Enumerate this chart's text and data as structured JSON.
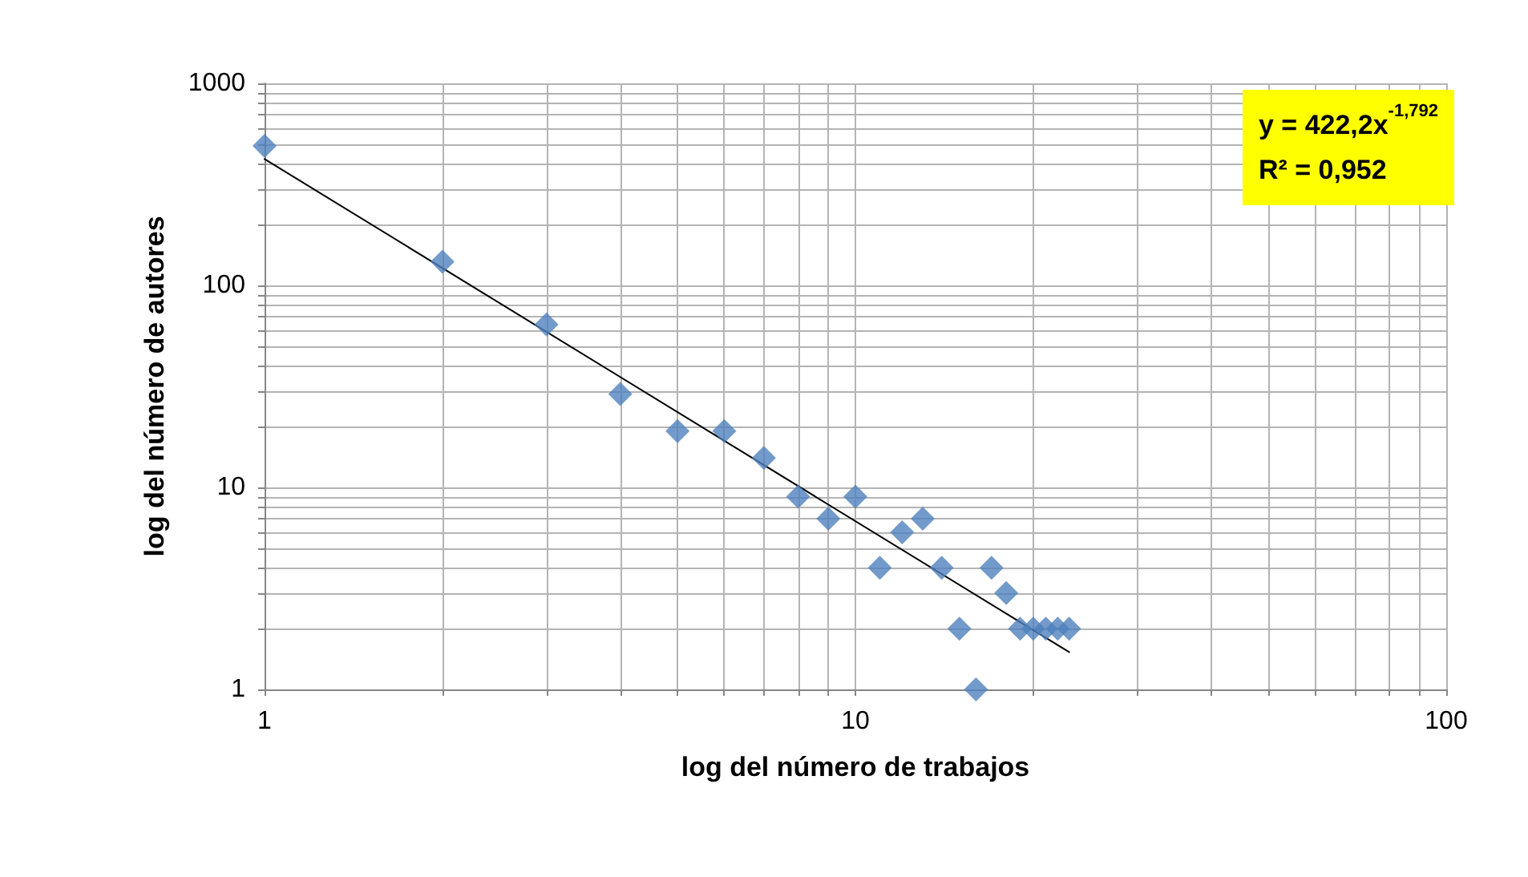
{
  "chart_data": {
    "type": "scatter",
    "xlabel": "log del número de trabajos",
    "ylabel": "log del número de autores",
    "log": "xy",
    "grid": true,
    "marker": "diamond",
    "xlim": [
      1,
      100
    ],
    "xticks": [
      1,
      {
        "value": 2,
        "label": null
      },
      {
        "value": 3,
        "label": null
      },
      {
        "value": 4,
        "label": null
      },
      {
        "value": 5,
        "label": null
      },
      {
        "value": 6,
        "label": null
      },
      {
        "value": 7,
        "label": null
      },
      {
        "value": 8,
        "label": null
      },
      {
        "value": 9,
        "label": null
      },
      10,
      {
        "value": 20,
        "label": null
      },
      {
        "value": 30,
        "label": null
      },
      {
        "value": 40,
        "label": null
      },
      {
        "value": 50,
        "label": null
      },
      {
        "value": 60,
        "label": null
      },
      {
        "value": 70,
        "label": null
      },
      {
        "value": 80,
        "label": null
      },
      {
        "value": 90,
        "label": null
      },
      100
    ],
    "ylim": [
      1,
      1000
    ],
    "yticks": [
      1,
      {
        "value": 2,
        "label": null
      },
      {
        "value": 3,
        "label": null
      },
      {
        "value": 4,
        "label": null
      },
      {
        "value": 5,
        "label": null
      },
      {
        "value": 6,
        "label": null
      },
      {
        "value": 7,
        "label": null
      },
      {
        "value": 8,
        "label": null
      },
      {
        "value": 9,
        "label": null
      },
      10,
      {
        "value": 20,
        "label": null
      },
      {
        "value": 30,
        "label": null
      },
      {
        "value": 40,
        "label": null
      },
      {
        "value": 50,
        "label": null
      },
      {
        "value": 60,
        "label": null
      },
      {
        "value": 70,
        "label": null
      },
      {
        "value": 80,
        "label": null
      },
      {
        "value": 90,
        "label": null
      },
      100,
      {
        "value": 200,
        "label": null
      },
      {
        "value": 300,
        "label": null
      },
      {
        "value": 400,
        "label": null
      },
      {
        "value": 500,
        "label": null
      },
      {
        "value": 600,
        "label": null
      },
      {
        "value": 700,
        "label": null
      },
      {
        "value": 800,
        "label": null
      },
      {
        "value": 900,
        "label": null
      },
      1000
    ],
    "series": [
      {
        "color": "#4f81bd",
        "x": [
          1,
          2,
          3,
          4,
          5,
          6,
          7,
          8,
          9,
          10,
          11,
          12,
          13,
          14,
          15,
          16,
          17,
          18,
          19,
          20,
          21,
          22,
          23
        ],
        "values": [
          490,
          131,
          64,
          29,
          19,
          19,
          14,
          9,
          7,
          9,
          4,
          6,
          7,
          4,
          2,
          1,
          4,
          3,
          2,
          2,
          2,
          2,
          2
        ]
      },
      {
        "type": "line",
        "color": "#000000",
        "marker": "none",
        "x": [
          1,
          23
        ],
        "values": [
          422.2,
          1.53
        ]
      }
    ],
    "annotations": [
      "y = 422,2x$^{-1,792}$",
      "R² = 0,952"
    ]
  }
}
